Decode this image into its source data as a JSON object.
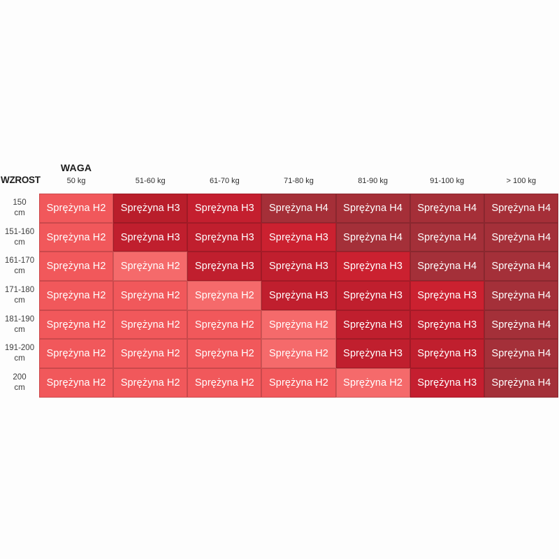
{
  "page": {
    "background": "#fdfdfd"
  },
  "axis": {
    "col_title": "WAGA",
    "row_title": "WZROST",
    "col_headers": [
      "50 kg",
      "51-60 kg",
      "61-70 kg",
      "71-80 kg",
      "81-90 kg",
      "91-100 kg",
      "> 100 kg"
    ],
    "row_headers": [
      {
        "value": "150",
        "unit": "cm"
      },
      {
        "value": "151-160",
        "unit": "cm"
      },
      {
        "value": "161-170",
        "unit": "cm"
      },
      {
        "value": "171-180",
        "unit": "cm"
      },
      {
        "value": "181-190",
        "unit": "cm"
      },
      {
        "value": "191-200",
        "unit": "cm"
      },
      {
        "value": "200",
        "unit": "cm"
      }
    ]
  },
  "palette": {
    "h2": "#F1585B",
    "h2_light": "#F56A6B",
    "h3": "#C01F2E",
    "h3_dark": "#B91E2B",
    "h3_bright": "#CB2130",
    "h4": "#A43039"
  },
  "grid": {
    "rows": [
      {
        "cells": [
          {
            "label": "Sprężyna H2",
            "color": "#F1585B"
          },
          {
            "label": "Sprężyna H3",
            "color": "#B91E2B"
          },
          {
            "label": "Sprężyna H3",
            "color": "#C41F2F"
          },
          {
            "label": "Sprężyna H4",
            "color": "#A52F38"
          },
          {
            "label": "Sprężyna H4",
            "color": "#A52F38"
          },
          {
            "label": "Sprężyna H4",
            "color": "#A52F38"
          },
          {
            "label": "Sprężyna H4",
            "color": "#A52F38"
          }
        ]
      },
      {
        "cells": [
          {
            "label": "Sprężyna H2",
            "color": "#F1585B"
          },
          {
            "label": "Sprężyna H3",
            "color": "#C01F2E"
          },
          {
            "label": "Sprężyna H3",
            "color": "#C01F2E"
          },
          {
            "label": "Sprężyna H3",
            "color": "#CB2130"
          },
          {
            "label": "Sprężyna H4",
            "color": "#A43039"
          },
          {
            "label": "Sprężyna H4",
            "color": "#A43039"
          },
          {
            "label": "Sprężyna H4",
            "color": "#A43039"
          }
        ]
      },
      {
        "cells": [
          {
            "label": "Sprężyna H2",
            "color": "#F1585B"
          },
          {
            "label": "Sprężyna H2",
            "color": "#F56A6B"
          },
          {
            "label": "Sprężyna H3",
            "color": "#C01F2E"
          },
          {
            "label": "Sprężyna H3",
            "color": "#C01F2E"
          },
          {
            "label": "Sprężyna H3",
            "color": "#CB2130"
          },
          {
            "label": "Sprężyna H4",
            "color": "#A43039"
          },
          {
            "label": "Sprężyna H4",
            "color": "#A43039"
          }
        ]
      },
      {
        "cells": [
          {
            "label": "Sprężyna H2",
            "color": "#F1585B"
          },
          {
            "label": "Sprężyna H2",
            "color": "#F1585B"
          },
          {
            "label": "Sprężyna H2",
            "color": "#F56A6B"
          },
          {
            "label": "Sprężyna H3",
            "color": "#C01F2E"
          },
          {
            "label": "Sprężyna H3",
            "color": "#C01F2E"
          },
          {
            "label": "Sprężyna H3",
            "color": "#CB2130"
          },
          {
            "label": "Sprężyna H4",
            "color": "#A43039"
          }
        ]
      },
      {
        "cells": [
          {
            "label": "Sprężyna H2",
            "color": "#F1585B"
          },
          {
            "label": "Sprężyna H2",
            "color": "#F1585B"
          },
          {
            "label": "Sprężyna H2",
            "color": "#F1585B"
          },
          {
            "label": "Sprężyna H2",
            "color": "#F56A6B"
          },
          {
            "label": "Sprężyna H3",
            "color": "#C01F2E"
          },
          {
            "label": "Sprężyna H3",
            "color": "#C01F2E"
          },
          {
            "label": "Sprężyna H4",
            "color": "#A43039"
          }
        ]
      },
      {
        "cells": [
          {
            "label": "Sprężyna H2",
            "color": "#F1585B"
          },
          {
            "label": "Sprężyna H2",
            "color": "#F1585B"
          },
          {
            "label": "Sprężyna H2",
            "color": "#F1585B"
          },
          {
            "label": "Sprężyna H2",
            "color": "#F56A6B"
          },
          {
            "label": "Sprężyna H3",
            "color": "#C01F2E"
          },
          {
            "label": "Sprężyna H3",
            "color": "#C01F2E"
          },
          {
            "label": "Sprężyna H4",
            "color": "#A43039"
          }
        ]
      },
      {
        "cells": [
          {
            "label": "Sprężyna H2",
            "color": "#F1585B"
          },
          {
            "label": "Sprężyna H2",
            "color": "#F1585B"
          },
          {
            "label": "Sprężyna H2",
            "color": "#F1585B"
          },
          {
            "label": "Sprężyna H2",
            "color": "#F1585B"
          },
          {
            "label": "Sprężyna H2",
            "color": "#F56A6B"
          },
          {
            "label": "Sprężyna H3",
            "color": "#C51F30"
          },
          {
            "label": "Sprężyna H4",
            "color": "#A43039"
          }
        ]
      }
    ]
  },
  "chart_data": {
    "type": "heatmap",
    "title": "",
    "x_title": "WAGA",
    "y_title": "WZROST",
    "columns": [
      "50 kg",
      "51-60 kg",
      "61-70 kg",
      "71-80 kg",
      "81-90 kg",
      "91-100 kg",
      "> 100 kg"
    ],
    "rows": [
      "150 cm",
      "151-160 cm",
      "161-170 cm",
      "171-180 cm",
      "181-190 cm",
      "191-200 cm",
      "200 cm"
    ],
    "cell_label_prefix": "Sprężyna",
    "values": [
      [
        "H2",
        "H3",
        "H3",
        "H4",
        "H4",
        "H4",
        "H4"
      ],
      [
        "H2",
        "H3",
        "H3",
        "H3",
        "H4",
        "H4",
        "H4"
      ],
      [
        "H2",
        "H2",
        "H3",
        "H3",
        "H3",
        "H4",
        "H4"
      ],
      [
        "H2",
        "H2",
        "H2",
        "H3",
        "H3",
        "H3",
        "H4"
      ],
      [
        "H2",
        "H2",
        "H2",
        "H2",
        "H3",
        "H3",
        "H4"
      ],
      [
        "H2",
        "H2",
        "H2",
        "H2",
        "H3",
        "H3",
        "H4"
      ],
      [
        "H2",
        "H2",
        "H2",
        "H2",
        "H2",
        "H3",
        "H4"
      ]
    ],
    "legend": {
      "H2": "#F1585B",
      "H3": "#C01F2E",
      "H4": "#A43039"
    },
    "layout": {
      "grid": true,
      "legend_position": "none"
    }
  }
}
